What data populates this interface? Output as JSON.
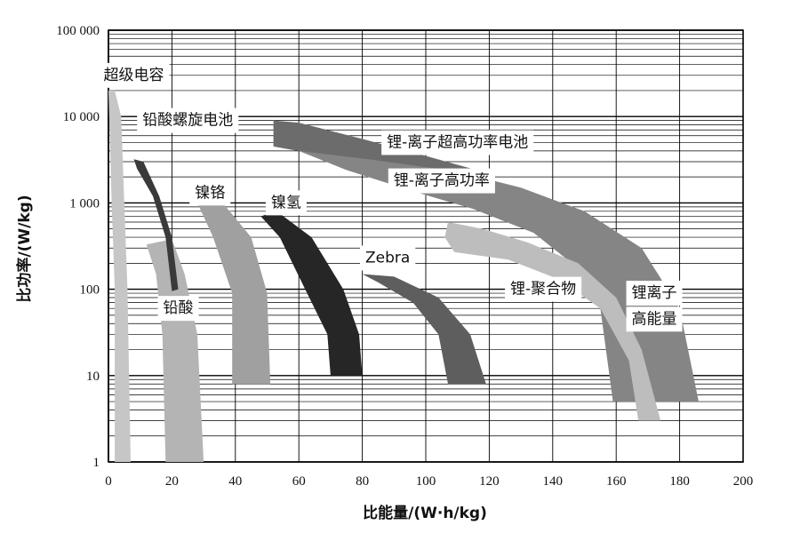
{
  "chart_data": {
    "type": "area",
    "x_scale": "linear",
    "y_scale": "log",
    "xlim": [
      0,
      200
    ],
    "ylim": [
      1,
      100000
    ],
    "grid": true,
    "xlabel": "比能量/(W·h/kg)",
    "ylabel": "比功率/(W/kg)",
    "x_ticks": [
      "0",
      "20",
      "40",
      "60",
      "80",
      "100",
      "120",
      "140",
      "160",
      "180",
      "200"
    ],
    "y_ticks": [
      "1",
      "10",
      "100",
      "1 000",
      "10 000",
      "100 000"
    ],
    "regions": [
      {
        "name": "超级电容",
        "color": "#c6c6c6",
        "label_pos": [
          8,
          30000
        ],
        "points": [
          [
            2,
            1
          ],
          [
            7,
            1
          ],
          [
            6,
            100
          ],
          [
            5,
            1000
          ],
          [
            4,
            10000
          ],
          [
            2,
            20000
          ],
          [
            0,
            20000
          ],
          [
            1,
            1000
          ],
          [
            2,
            100
          ]
        ]
      },
      {
        "name": "铅酸",
        "color": "#b4b4b4",
        "label_pos": [
          22,
          60
        ],
        "points": [
          [
            12,
            330
          ],
          [
            20,
            380
          ],
          [
            24,
            150
          ],
          [
            28,
            30
          ],
          [
            30,
            1
          ],
          [
            18,
            1
          ],
          [
            17,
            30
          ],
          [
            15,
            150
          ]
        ]
      },
      {
        "name": "铅酸螺旋电池",
        "color": "#3a3a3a",
        "label_pos": [
          25,
          9000
        ],
        "points": [
          [
            8,
            3200
          ],
          [
            11,
            3000
          ],
          [
            16,
            1200
          ],
          [
            20,
            400
          ],
          [
            22,
            100
          ],
          [
            20,
            95
          ],
          [
            18,
            400
          ],
          [
            14,
            1200
          ],
          [
            9,
            2500
          ]
        ]
      },
      {
        "name": "镍铬",
        "color": "#a0a0a0",
        "label_pos": [
          32,
          1300
        ],
        "points": [
          [
            28,
            1000
          ],
          [
            36,
            1000
          ],
          [
            45,
            400
          ],
          [
            50,
            90
          ],
          [
            51,
            8
          ],
          [
            39,
            8
          ],
          [
            39,
            90
          ],
          [
            33,
            400
          ]
        ]
      },
      {
        "name": "镍氢",
        "color": "#262626",
        "label_pos": [
          56,
          1000
        ],
        "points": [
          [
            48,
            700
          ],
          [
            53,
            800
          ],
          [
            64,
            400
          ],
          [
            74,
            100
          ],
          [
            79,
            30
          ],
          [
            80,
            10
          ],
          [
            70,
            10
          ],
          [
            69,
            30
          ],
          [
            62,
            100
          ],
          [
            54,
            400
          ]
        ]
      },
      {
        "name": "Zebra",
        "color": "#5e5e5e",
        "label_pos": [
          88,
          230
        ],
        "points": [
          [
            80,
            150
          ],
          [
            90,
            140
          ],
          [
            104,
            80
          ],
          [
            114,
            30
          ],
          [
            119,
            8
          ],
          [
            107,
            8
          ],
          [
            104,
            30
          ],
          [
            96,
            70
          ],
          [
            85,
            120
          ]
        ]
      },
      {
        "name": "锂-离子超高功率电池",
        "color": "#6c6c6c",
        "label_pos": [
          110,
          5000
        ],
        "points": [
          [
            52,
            9000
          ],
          [
            60,
            8500
          ],
          [
            80,
            5500
          ],
          [
            100,
            3500
          ],
          [
            116,
            2400
          ],
          [
            122,
            2000
          ],
          [
            110,
            2000
          ],
          [
            95,
            2300
          ],
          [
            80,
            2900
          ],
          [
            63,
            3800
          ],
          [
            52,
            4500
          ]
        ]
      },
      {
        "name": "锂-离子高功率",
        "color": "#858585",
        "label_pos": [
          105,
          1800
        ],
        "points": [
          [
            60,
            4000
          ],
          [
            82,
            3200
          ],
          [
            110,
            2300
          ],
          [
            130,
            1500
          ],
          [
            150,
            800
          ],
          [
            168,
            300
          ],
          [
            180,
            60
          ],
          [
            186,
            5
          ],
          [
            159,
            5
          ],
          [
            155,
            60
          ],
          [
            146,
            200
          ],
          [
            134,
            450
          ],
          [
            115,
            850
          ],
          [
            95,
            1400
          ],
          [
            75,
            2400
          ]
        ]
      },
      {
        "name": "锂-聚合物",
        "color": "#bdbdbd",
        "label_pos": [
          137,
          100
        ],
        "points": [
          [
            107,
            600
          ],
          [
            118,
            500
          ],
          [
            132,
            350
          ],
          [
            148,
            200
          ],
          [
            160,
            80
          ],
          [
            168,
            20
          ],
          [
            174,
            3
          ],
          [
            167,
            3
          ],
          [
            164,
            15
          ],
          [
            155,
            60
          ],
          [
            142,
            130
          ],
          [
            126,
            220
          ],
          [
            109,
            270
          ],
          [
            106,
            400
          ]
        ]
      }
    ],
    "label_extra": {
      "锂离子高能量_line1": "锂离子",
      "锂离子高能量_line2": "高能量"
    }
  }
}
